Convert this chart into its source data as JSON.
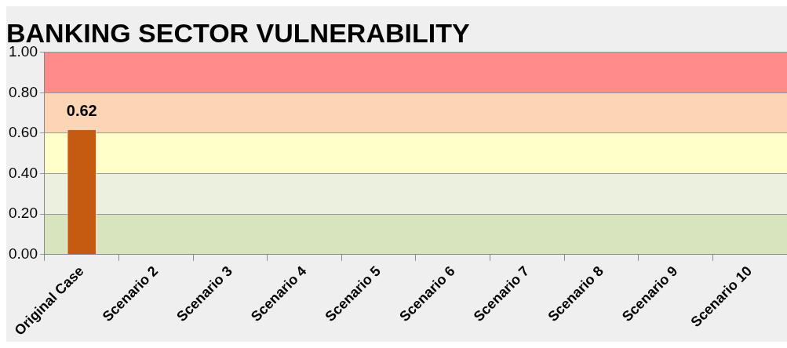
{
  "chart_data": {
    "type": "bar",
    "title": "BANKING SECTOR VULNERABILITY",
    "categories": [
      "Original Case",
      "Scenario 2",
      "Scenario 3",
      "Scenario 4",
      "Scenario 5",
      "Scenario 6",
      "Scenario 7",
      "Scenario 8",
      "Scenario 9",
      "Scenario 10"
    ],
    "values": [
      0.62,
      null,
      null,
      null,
      null,
      null,
      null,
      null,
      null,
      null
    ],
    "color": "#c55a11",
    "ylim": [
      0,
      1
    ],
    "yticks": [
      {
        "value": 0,
        "label": "0.00"
      },
      {
        "value": 0.2,
        "label": "0.20"
      },
      {
        "value": 0.4,
        "label": "0.40"
      },
      {
        "value": 0.6,
        "label": "0.60"
      },
      {
        "value": 0.8,
        "label": "0.80"
      },
      {
        "value": 1,
        "label": "1.00"
      }
    ],
    "bands": [
      {
        "axis": "y",
        "from": 0,
        "to": 0.2,
        "color": "#d7e4bd"
      },
      {
        "axis": "y",
        "from": 0.2,
        "to": 0.4,
        "color": "#ebf1de"
      },
      {
        "axis": "y",
        "from": 0.4,
        "to": 0.6,
        "color": "#ffffc9"
      },
      {
        "axis": "y",
        "from": 0.6,
        "to": 0.8,
        "color": "#fcd5b5"
      },
      {
        "axis": "y",
        "from": 0.8,
        "to": 1,
        "color": "#ff8b8b"
      }
    ],
    "data_labels": true,
    "grid": "y",
    "legend": false
  }
}
